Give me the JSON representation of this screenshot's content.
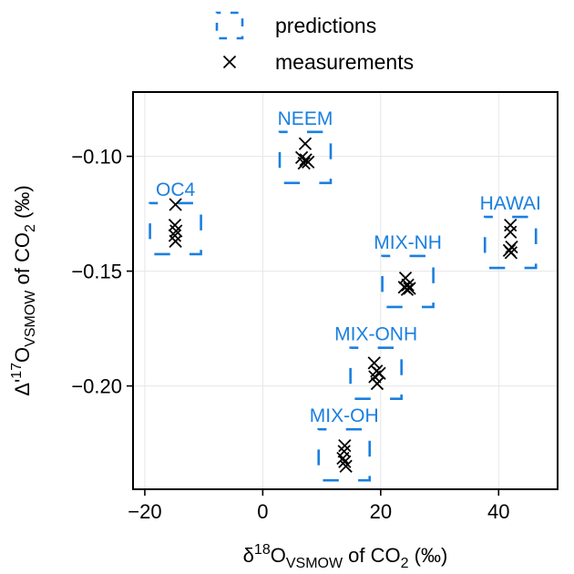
{
  "chart_data": {
    "type": "scatter",
    "xlabel": {
      "prefix": "δ",
      "sup": "18",
      "main": "O",
      "sub": "VSMOW",
      "suffix": " of CO",
      "sub2": "2",
      "tail": " (‰)"
    },
    "ylabel": {
      "prefix": "Δ'",
      "sup": "17",
      "main": "O",
      "sub": "VSMOW",
      "suffix": " of CO",
      "sub2": "2",
      "tail": " (‰)"
    },
    "xlim": [
      -22,
      50
    ],
    "ylim": [
      -0.245,
      -0.072
    ],
    "xticks": [
      -20,
      0,
      20,
      40
    ],
    "xtick_labels": [
      "−20",
      "0",
      "20",
      "40"
    ],
    "yticks": [
      -0.1,
      -0.15,
      -0.2
    ],
    "ytick_labels": [
      "−0.10",
      "−0.15",
      "−0.20"
    ],
    "grid": true,
    "legend_position": "top-center",
    "colors": {
      "predictions": "#1a7fe0",
      "measurements": "#000000"
    },
    "legend": [
      {
        "label": "predictions",
        "marker": "dashed-square"
      },
      {
        "label": "measurements",
        "marker": "x"
      }
    ],
    "groups": [
      {
        "name": "NEEM",
        "prediction": {
          "x": 7.2,
          "y": -0.1005
        },
        "measurements": [
          {
            "x": 7.2,
            "y": -0.0945
          },
          {
            "x": 6.6,
            "y": -0.1005
          },
          {
            "x": 7.3,
            "y": -0.1015
          },
          {
            "x": 7.7,
            "y": -0.1025
          },
          {
            "x": 7.0,
            "y": -0.103
          }
        ]
      },
      {
        "name": "OC4",
        "prediction": {
          "x": -14.8,
          "y": -0.1315
        },
        "measurements": [
          {
            "x": -14.8,
            "y": -0.121
          },
          {
            "x": -14.9,
            "y": -0.13
          },
          {
            "x": -14.7,
            "y": -0.1325
          },
          {
            "x": -14.9,
            "y": -0.1345
          },
          {
            "x": -14.8,
            "y": -0.137
          }
        ]
      },
      {
        "name": "HAWAI",
        "prediction": {
          "x": 42.0,
          "y": -0.1375
        },
        "measurements": [
          {
            "x": 42.0,
            "y": -0.13
          },
          {
            "x": 42.0,
            "y": -0.133
          },
          {
            "x": 42.2,
            "y": -0.1395
          },
          {
            "x": 41.8,
            "y": -0.141
          },
          {
            "x": 42.1,
            "y": -0.142
          }
        ]
      },
      {
        "name": "MIX-NH",
        "prediction": {
          "x": 24.6,
          "y": -0.1545
        },
        "measurements": [
          {
            "x": 24.2,
            "y": -0.153
          },
          {
            "x": 24.6,
            "y": -0.156
          },
          {
            "x": 24.0,
            "y": -0.157
          },
          {
            "x": 24.9,
            "y": -0.1575
          },
          {
            "x": 24.5,
            "y": -0.158
          }
        ]
      },
      {
        "name": "MIX-ONH",
        "prediction": {
          "x": 19.2,
          "y": -0.1945
        },
        "measurements": [
          {
            "x": 18.9,
            "y": -0.19
          },
          {
            "x": 19.3,
            "y": -0.1935
          },
          {
            "x": 19.8,
            "y": -0.1945
          },
          {
            "x": 19.0,
            "y": -0.196
          },
          {
            "x": 19.4,
            "y": -0.199
          }
        ]
      },
      {
        "name": "MIX-OH",
        "prediction": {
          "x": 13.8,
          "y": -0.23
        },
        "measurements": [
          {
            "x": 13.9,
            "y": -0.226
          },
          {
            "x": 13.8,
            "y": -0.2285
          },
          {
            "x": 13.6,
            "y": -0.2315
          },
          {
            "x": 13.9,
            "y": -0.233
          },
          {
            "x": 14.1,
            "y": -0.235
          }
        ]
      }
    ]
  }
}
